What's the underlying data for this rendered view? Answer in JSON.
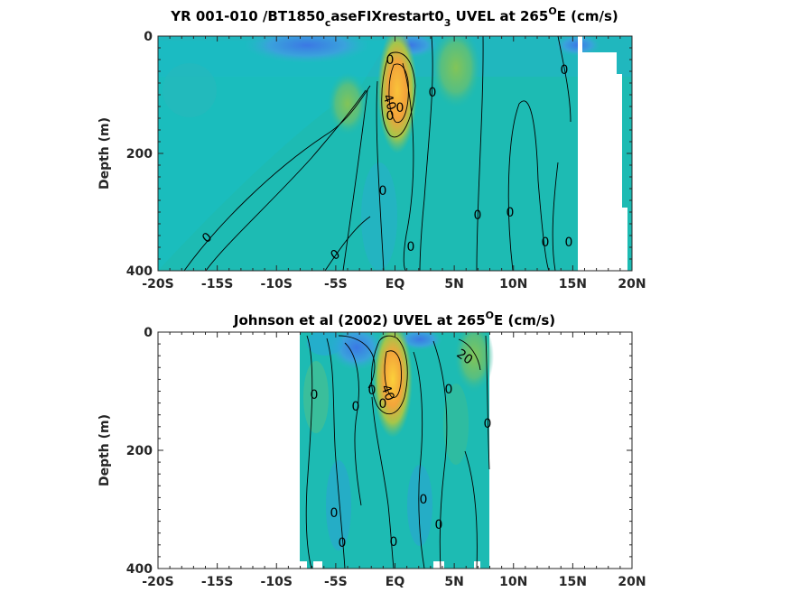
{
  "chart_data": [
    {
      "type": "heatmap",
      "title_parts": {
        "before_sub": "YR 001-010 /BT1850",
        "sub": "c",
        "middle": "aseFIXrestart0",
        "sub2": "3",
        "after": " UVEL at 265",
        "superscript": "O",
        "tail": "E (cm/s)"
      },
      "xlabel": "",
      "ylabel": "Depth (m)",
      "xlim": [
        -20,
        20
      ],
      "ylim": [
        400,
        0
      ],
      "xtick_labels": [
        "-20S",
        "-15S",
        "-10S",
        "-5S",
        "EQ",
        "5N",
        "10N",
        "15N",
        "20N"
      ],
      "ytick_labels": [
        "0",
        "200",
        "400"
      ],
      "data_extent_x": [
        -20,
        20
      ],
      "contour_labels": [
        "0",
        "40",
        "0",
        "0",
        "0",
        "0",
        "0",
        "0",
        "0",
        "0",
        "0",
        "0",
        "0"
      ],
      "colors": {
        "background": "#1dbbb3",
        "westward": "#3aa0dc",
        "eastward_core": "#f7a535",
        "eastward_peak": "#f9c33a"
      }
    },
    {
      "type": "heatmap",
      "title_parts": {
        "before_sub": "Johnson et al (2002) UVEL at 265",
        "superscript": "O",
        "tail": "E (cm/s)"
      },
      "xlabel": "",
      "ylabel": "Depth (m)",
      "xlim": [
        -20,
        20
      ],
      "ylim": [
        400,
        0
      ],
      "xtick_labels": [
        "-20S",
        "-15S",
        "-10S",
        "-5S",
        "EQ",
        "5N",
        "10N",
        "15N",
        "20N"
      ],
      "ytick_labels": [
        "0",
        "200",
        "400"
      ],
      "data_extent_x": [
        -8,
        8
      ],
      "contour_labels": [
        "0",
        "0",
        "0",
        "0",
        "40",
        "0",
        "20",
        "0",
        "0",
        "0",
        "0",
        "0",
        "0"
      ],
      "colors": {
        "background": "#1dbbb3",
        "westward": "#3a6fe0",
        "eastward_core": "#f7a535",
        "eastward_peak": "#f9c33a"
      }
    }
  ]
}
